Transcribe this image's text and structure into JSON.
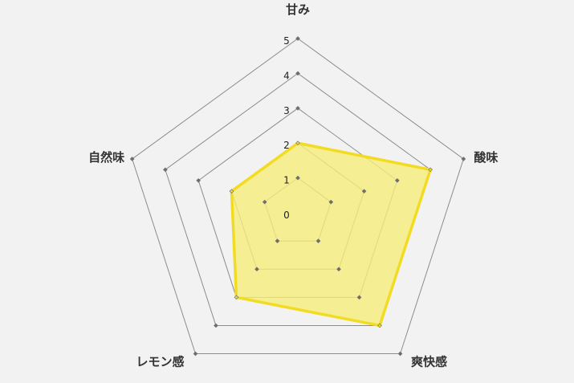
{
  "chart_data": {
    "type": "radar",
    "categories": [
      "甘み",
      "酸味",
      "爽快感",
      "レモン感",
      "自然味"
    ],
    "values": [
      2,
      4,
      4,
      3,
      2
    ],
    "rlim": [
      0,
      5
    ],
    "tick_labels": [
      "0",
      "1",
      "2",
      "3",
      "4",
      "5"
    ],
    "grid": true,
    "colors": {
      "fill": "#f5ec7a",
      "stroke": "#f2dc22",
      "grid": "#8c8c8c",
      "background": "#f2f2f2"
    }
  }
}
